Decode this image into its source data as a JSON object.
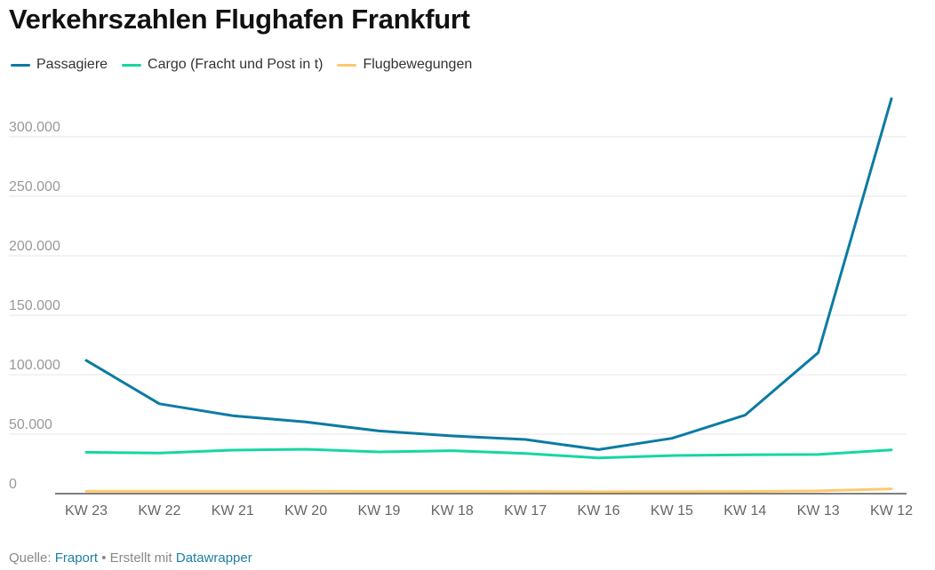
{
  "title": "Verkehrszahlen Flughafen Frankfurt",
  "footer": {
    "source_label": "Quelle:",
    "source_link": "Fraport",
    "separator": "•",
    "created_label": "Erstellt mit",
    "created_link": "Datawrapper"
  },
  "colors": {
    "passagiere": "#0c7ba3",
    "cargo": "#16d6a3",
    "flugbewegungen": "#fdc96f",
    "grid": "#e6e6e6",
    "axis": "#333333",
    "tick_label": "#999999",
    "link": "#1d81a2"
  },
  "chart_data": {
    "type": "line",
    "categories": [
      "KW 23",
      "KW 22",
      "KW 21",
      "KW 20",
      "KW 19",
      "KW 18",
      "KW 17",
      "KW 16",
      "KW 15",
      "KW 14",
      "KW 13",
      "KW 12"
    ],
    "series": [
      {
        "name": "Passagiere",
        "color": "#0c7ba3",
        "values": [
          112000,
          75500,
          65500,
          60200,
          52700,
          48500,
          45500,
          37000,
          46500,
          66000,
          118500,
          332000
        ]
      },
      {
        "name": "Cargo (Fracht und Post in t)",
        "color": "#16d6a3",
        "values": [
          34800,
          34200,
          36600,
          37300,
          35100,
          36100,
          33800,
          30000,
          32000,
          32600,
          32900,
          36800
        ]
      },
      {
        "name": "Flugbewegungen",
        "color": "#fdc96f",
        "values": [
          2100,
          2100,
          2000,
          2000,
          1900,
          1900,
          1800,
          1600,
          1700,
          1800,
          2300,
          4000
        ]
      }
    ],
    "yticks": [
      0,
      50000,
      100000,
      150000,
      200000,
      250000,
      300000
    ],
    "ytick_labels": [
      "0",
      "50.000",
      "100.000",
      "150.000",
      "200.000",
      "250.000",
      "300.000"
    ],
    "ylim": [
      0,
      330000
    ],
    "grid": true,
    "legend": "top-left"
  }
}
